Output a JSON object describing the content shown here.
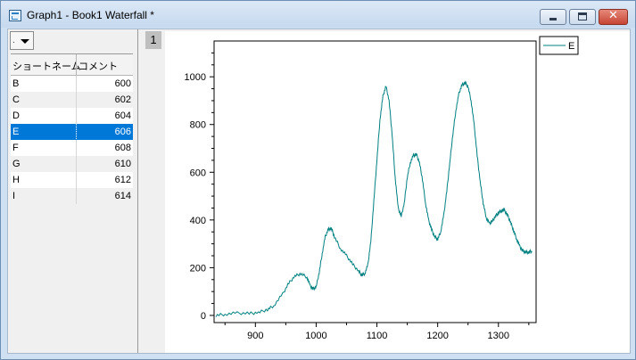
{
  "window": {
    "title": "Graph1 - Book1 Waterfall *",
    "close_glyph": "✕"
  },
  "side_panel": {
    "dropdown_value": ".",
    "columns": [
      "ショートネーム",
      "コメント"
    ],
    "rows": [
      {
        "name": "B",
        "comment": "600",
        "selected": false
      },
      {
        "name": "C",
        "comment": "602",
        "selected": false
      },
      {
        "name": "D",
        "comment": "604",
        "selected": false
      },
      {
        "name": "E",
        "comment": "606",
        "selected": true
      },
      {
        "name": "F",
        "comment": "608",
        "selected": false
      },
      {
        "name": "G",
        "comment": "610",
        "selected": false
      },
      {
        "name": "H",
        "comment": "612",
        "selected": false
      },
      {
        "name": "I",
        "comment": "614",
        "selected": false
      }
    ]
  },
  "graph": {
    "page_number": "1"
  },
  "chart_data": {
    "type": "line",
    "xlim": [
      832,
      1362
    ],
    "ylim": [
      -30,
      1150
    ],
    "x_ticks": [
      900,
      1000,
      1100,
      1200,
      1300
    ],
    "y_ticks": [
      0,
      200,
      400,
      600,
      800,
      1000
    ],
    "legend_position": "top-right-outside",
    "line_color": "#008080",
    "series": [
      {
        "name": "E",
        "x": [
          835,
          850,
          870,
          890,
          905,
          920,
          930,
          945,
          955,
          965,
          975,
          985,
          990,
          995,
          1000,
          1005,
          1010,
          1015,
          1020,
          1025,
          1030,
          1040,
          1050,
          1060,
          1070,
          1075,
          1080,
          1085,
          1090,
          1095,
          1100,
          1105,
          1110,
          1115,
          1120,
          1125,
          1130,
          1135,
          1140,
          1145,
          1150,
          1155,
          1160,
          1165,
          1170,
          1175,
          1180,
          1185,
          1190,
          1195,
          1200,
          1205,
          1210,
          1215,
          1220,
          1225,
          1230,
          1235,
          1240,
          1245,
          1250,
          1255,
          1260,
          1265,
          1270,
          1275,
          1280,
          1285,
          1290,
          1295,
          1300,
          1305,
          1310,
          1315,
          1320,
          1325,
          1330,
          1335,
          1340,
          1345,
          1350,
          1355
        ],
        "y": [
          0,
          5,
          10,
          8,
          12,
          25,
          40,
          90,
          135,
          165,
          175,
          160,
          125,
          110,
          120,
          180,
          260,
          330,
          360,
          365,
          330,
          280,
          250,
          215,
          185,
          170,
          175,
          210,
          310,
          480,
          650,
          820,
          920,
          960,
          900,
          760,
          580,
          450,
          415,
          470,
          580,
          640,
          670,
          675,
          640,
          570,
          470,
          400,
          360,
          330,
          320,
          350,
          420,
          520,
          640,
          760,
          860,
          930,
          965,
          975,
          960,
          900,
          800,
          670,
          560,
          470,
          410,
          385,
          395,
          415,
          430,
          440,
          440,
          420,
          390,
          355,
          320,
          290,
          270,
          265,
          265,
          270
        ]
      }
    ]
  }
}
